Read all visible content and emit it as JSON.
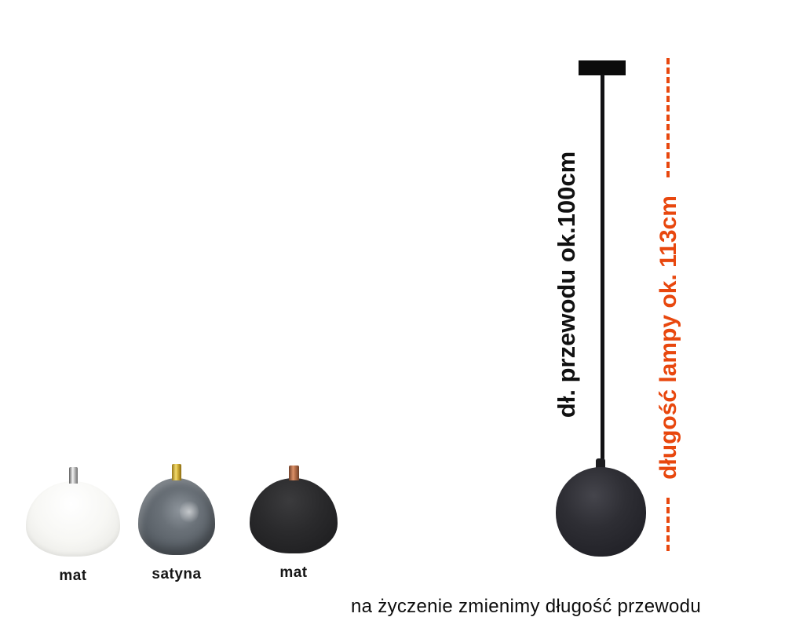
{
  "annotations": {
    "cable_length": "dł. przewodu ok.100cm",
    "lamp_length": "długość lampy ok. 113cm",
    "caption": "na życzenie zmienimy długość przewodu"
  },
  "shades": [
    {
      "label": "mat",
      "shade_color": "#f7f7f4",
      "fitting_color": "#d9d9d9",
      "fitting": "chrome"
    },
    {
      "label": "satyna",
      "shade_color": "#6a7178",
      "fitting_color": "#d6b43c",
      "fitting": "gold"
    },
    {
      "label": "mat",
      "shade_color": "#2a2a2c",
      "fitting_color": "#b76f49",
      "fitting": "copper"
    }
  ],
  "colors": {
    "accent": "#e8470e",
    "ink": "#111111",
    "lamp-dark": "#232329"
  }
}
